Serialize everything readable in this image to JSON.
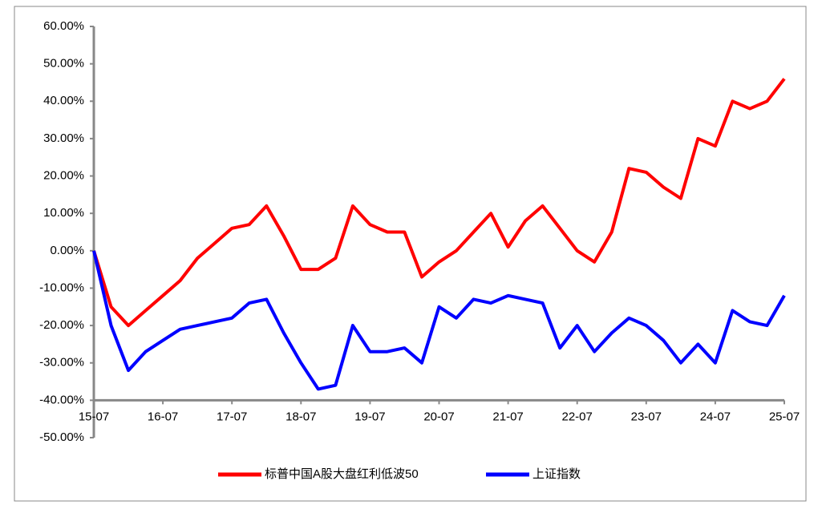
{
  "chart_data": {
    "type": "line",
    "x": [
      "15-07",
      null,
      null,
      null,
      "16-07",
      null,
      null,
      null,
      "17-07",
      null,
      null,
      null,
      "18-07",
      null,
      null,
      null,
      "19-07",
      null,
      null,
      null,
      "20-07",
      null,
      null,
      null,
      "21-07",
      null,
      null,
      null,
      "22-07",
      null,
      null,
      null,
      "23-07",
      null,
      null,
      null,
      "24-07",
      null,
      null,
      null,
      "25-07"
    ],
    "series": [
      {
        "name": "标普中国A股大盘红利低波50",
        "color": "#ff0000",
        "values": [
          0,
          -15,
          -20,
          -16,
          -12,
          -8,
          -2,
          2,
          6,
          7,
          12,
          4,
          -5,
          -5,
          -2,
          12,
          7,
          5,
          5,
          -7,
          -3,
          0,
          5,
          10,
          1,
          8,
          12,
          6,
          0,
          -3,
          5,
          22,
          21,
          17,
          14,
          30,
          28,
          40,
          38,
          40,
          46
        ]
      },
      {
        "name": "上证指数",
        "color": "#0000ff",
        "values": [
          0,
          -20,
          -32,
          -27,
          -24,
          -21,
          -20,
          -19,
          -18,
          -14,
          -13,
          -22,
          -30,
          -37,
          -36,
          -20,
          -27,
          -27,
          -26,
          -30,
          -15,
          -18,
          -13,
          -14,
          -12,
          -13,
          -14,
          -26,
          -20,
          -27,
          -22,
          -18,
          -20,
          -24,
          -30,
          -25,
          -30,
          -16,
          -19,
          -20,
          -12
        ]
      }
    ],
    "ylim": [
      -50,
      60
    ],
    "yticks": [
      {
        "value": 60,
        "label": "60.00%"
      },
      {
        "value": 50,
        "label": "50.00%"
      },
      {
        "value": 40,
        "label": "40.00%"
      },
      {
        "value": 30,
        "label": "30.00%"
      },
      {
        "value": 20,
        "label": "20.00%"
      },
      {
        "value": 10,
        "label": "10.00%"
      },
      {
        "value": 0,
        "label": "0.00%"
      },
      {
        "value": -10,
        "label": "-10.00%"
      },
      {
        "value": -20,
        "label": "-20.00%"
      },
      {
        "value": -30,
        "label": "-30.00%"
      },
      {
        "value": -40,
        "label": "-40.00%"
      },
      {
        "value": -50,
        "label": "-50.00%"
      }
    ],
    "x_axis_crossing": -40,
    "grid": false,
    "legend": "bottom"
  }
}
